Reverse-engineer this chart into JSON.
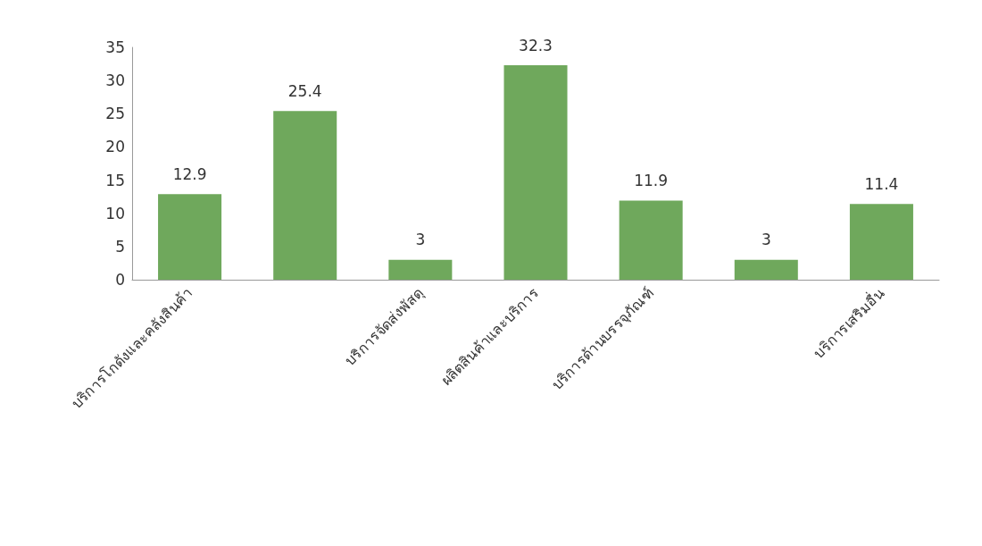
{
  "chart_data": {
    "type": "bar",
    "categories": [
      "บริการโกดังและคลังสินค้า",
      null,
      "บริการจัดส่งพัสดุ",
      "ผลิตสินค้าและบริการ",
      "บริการด้านบรรจุภัณฑ์",
      null,
      "บริการเสริมอื่น"
    ],
    "values": [
      12.9,
      25.4,
      3,
      32.3,
      11.9,
      3,
      11.4
    ],
    "color": "#6fa85c",
    "ylim": [
      0,
      35
    ],
    "yticks": [
      0,
      5,
      10,
      15,
      20,
      25,
      30,
      35
    ],
    "grid": false,
    "data_labels": true
  }
}
